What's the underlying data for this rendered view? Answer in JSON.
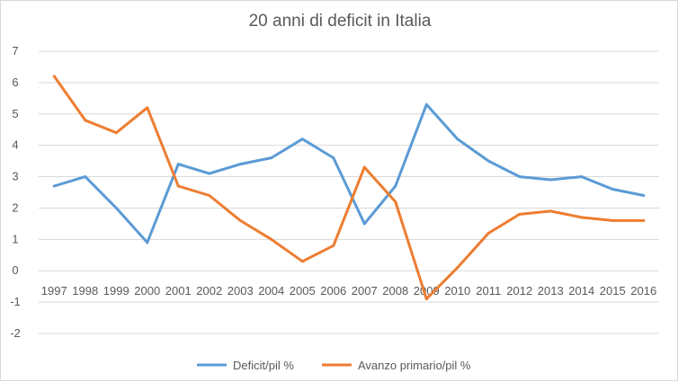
{
  "chart_data": {
    "type": "line",
    "title": "20 anni di deficit in Italia",
    "xlabel": "",
    "ylabel": "",
    "categories": [
      "1997",
      "1998",
      "1999",
      "2000",
      "2001",
      "2002",
      "2003",
      "2004",
      "2005",
      "2006",
      "2007",
      "2008",
      "2009",
      "2010",
      "2011",
      "2012",
      "2013",
      "2014",
      "2015",
      "2016"
    ],
    "ylim": [
      -2,
      7
    ],
    "yticks": [
      -2,
      -1,
      0,
      1,
      2,
      3,
      4,
      5,
      6,
      7
    ],
    "grid": true,
    "legend": "bottom",
    "series": [
      {
        "name": "Deficit/pil %",
        "color": "#5b9bd5",
        "values": [
          2.7,
          3.0,
          2.0,
          0.9,
          3.4,
          3.1,
          3.4,
          3.6,
          4.2,
          3.6,
          1.5,
          2.7,
          5.3,
          4.2,
          3.5,
          3.0,
          2.9,
          3.0,
          2.6,
          2.4
        ]
      },
      {
        "name": "Avanzo primario/pil %",
        "color": "#ed7d31",
        "values": [
          6.2,
          4.8,
          4.4,
          5.2,
          2.7,
          2.4,
          1.6,
          1.0,
          0.3,
          0.8,
          3.3,
          2.2,
          -0.9,
          0.1,
          1.2,
          1.8,
          1.9,
          1.7,
          1.6,
          1.6
        ]
      }
    ]
  }
}
